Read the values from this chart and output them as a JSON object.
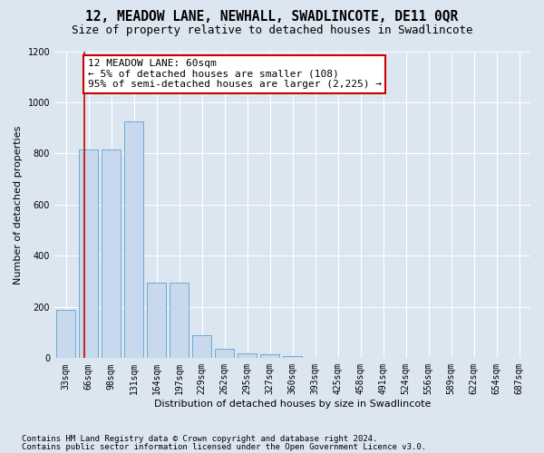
{
  "title": "12, MEADOW LANE, NEWHALL, SWADLINCOTE, DE11 0QR",
  "subtitle": "Size of property relative to detached houses in Swadlincote",
  "xlabel": "Distribution of detached houses by size in Swadlincote",
  "ylabel": "Number of detached properties",
  "footnote1": "Contains HM Land Registry data © Crown copyright and database right 2024.",
  "footnote2": "Contains public sector information licensed under the Open Government Licence v3.0.",
  "bin_labels": [
    "33sqm",
    "66sqm",
    "98sqm",
    "131sqm",
    "164sqm",
    "197sqm",
    "229sqm",
    "262sqm",
    "295sqm",
    "327sqm",
    "360sqm",
    "393sqm",
    "425sqm",
    "458sqm",
    "491sqm",
    "524sqm",
    "556sqm",
    "589sqm",
    "622sqm",
    "654sqm",
    "687sqm"
  ],
  "bar_heights": [
    190,
    815,
    815,
    925,
    295,
    295,
    90,
    35,
    20,
    15,
    10,
    0,
    0,
    0,
    0,
    0,
    0,
    0,
    0,
    0,
    0
  ],
  "bar_color": "#c8d9ee",
  "bar_edge_color": "#6aaad4",
  "vline_color": "#cc0000",
  "vline_bin_index": 0.82,
  "annotation_text_line1": "12 MEADOW LANE: 60sqm",
  "annotation_text_line2": "← 5% of detached houses are smaller (108)",
  "annotation_text_line3": "95% of semi-detached houses are larger (2,225) →",
  "annotation_box_facecolor": "#ffffff",
  "annotation_box_edgecolor": "#cc0000",
  "ylim": [
    0,
    1200
  ],
  "yticks": [
    0,
    200,
    400,
    600,
    800,
    1000,
    1200
  ],
  "bg_color": "#dce6f0",
  "plot_bg_color": "#dce6f0",
  "grid_color": "#ffffff",
  "title_fontsize": 10.5,
  "subtitle_fontsize": 9,
  "axis_label_fontsize": 8,
  "tick_fontsize": 7,
  "annotation_fontsize": 8,
  "footnote_fontsize": 6.5
}
